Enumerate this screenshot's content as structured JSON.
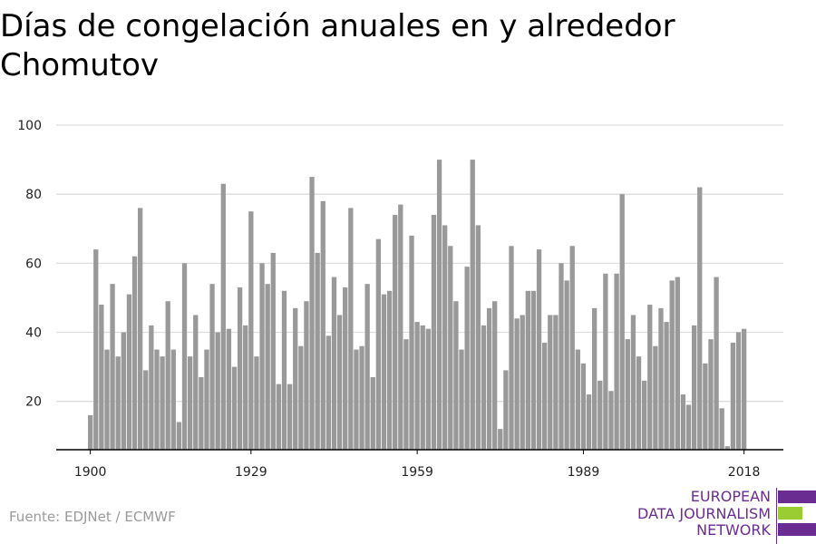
{
  "title": "Días de congelación anuales en y alrededor Chomutov",
  "source": "Fuente: EDJNet / ECMWF",
  "logo": {
    "lines": [
      "EUROPEAN",
      "DATA JOURNALISM",
      "NETWORK"
    ],
    "colors": {
      "purple": "#6a2c91",
      "green": "#9acd32"
    }
  },
  "colors": {
    "bar": "#999999",
    "grid": "#dddddd",
    "axis": "#000000"
  },
  "chart_data": {
    "type": "bar",
    "title": "Días de congelación anuales en y alrededor Chomutov",
    "xlabel": "",
    "ylabel": "",
    "x_tick_labels": [
      "1900",
      "1929",
      "1959",
      "1989",
      "2018"
    ],
    "y_ticks": [
      20,
      40,
      60,
      80,
      100
    ],
    "ylim": [
      6,
      100
    ],
    "grid": true,
    "x": [
      1900,
      1901,
      1902,
      1903,
      1904,
      1905,
      1906,
      1907,
      1908,
      1909,
      1910,
      1911,
      1912,
      1913,
      1914,
      1915,
      1916,
      1917,
      1918,
      1919,
      1920,
      1921,
      1922,
      1923,
      1924,
      1925,
      1926,
      1927,
      1928,
      1929,
      1930,
      1931,
      1932,
      1933,
      1934,
      1935,
      1936,
      1937,
      1938,
      1939,
      1940,
      1941,
      1942,
      1943,
      1944,
      1945,
      1946,
      1947,
      1948,
      1949,
      1950,
      1951,
      1952,
      1953,
      1954,
      1955,
      1956,
      1957,
      1958,
      1959,
      1960,
      1961,
      1962,
      1963,
      1964,
      1965,
      1966,
      1967,
      1968,
      1969,
      1970,
      1971,
      1972,
      1973,
      1974,
      1975,
      1976,
      1977,
      1978,
      1979,
      1980,
      1981,
      1982,
      1983,
      1984,
      1985,
      1986,
      1987,
      1988,
      1989,
      1990,
      1991,
      1992,
      1993,
      1994,
      1995,
      1996,
      1997,
      1998,
      1999,
      2000,
      2001,
      2002,
      2003,
      2004,
      2005,
      2006,
      2007,
      2008,
      2009,
      2010,
      2011,
      2012,
      2013,
      2014,
      2015,
      2016,
      2017,
      2018
    ],
    "values": [
      16,
      64,
      48,
      35,
      54,
      33,
      40,
      51,
      62,
      76,
      29,
      42,
      35,
      33,
      49,
      35,
      14,
      60,
      33,
      45,
      27,
      35,
      54,
      40,
      83,
      41,
      30,
      53,
      42,
      75,
      33,
      60,
      54,
      63,
      25,
      52,
      25,
      47,
      36,
      49,
      85,
      63,
      78,
      39,
      56,
      45,
      53,
      76,
      35,
      36,
      54,
      27,
      67,
      51,
      52,
      74,
      77,
      38,
      68,
      43,
      42,
      41,
      74,
      90,
      71,
      65,
      49,
      35,
      59,
      90,
      71,
      42,
      47,
      49,
      12,
      29,
      65,
      44,
      45,
      52,
      52,
      64,
      37,
      45,
      45,
      60,
      55,
      65,
      35,
      31,
      22,
      47,
      26,
      57,
      23,
      57,
      80,
      38,
      45,
      33,
      26,
      48,
      36,
      47,
      43,
      55,
      56,
      22,
      19,
      42,
      82,
      31,
      38,
      56,
      18,
      7,
      37,
      40,
      41
    ]
  }
}
